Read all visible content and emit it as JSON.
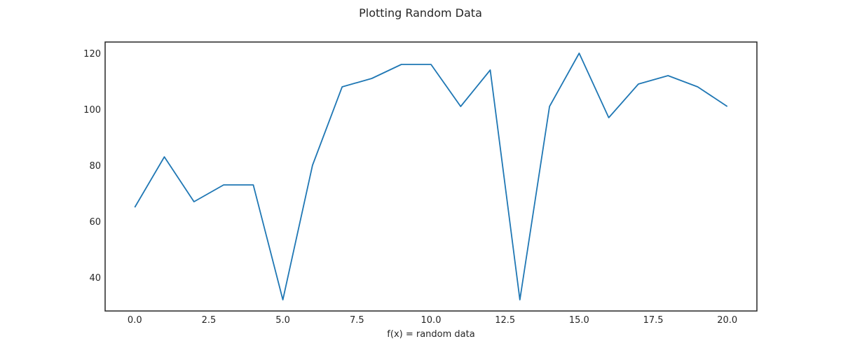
{
  "chart_data": {
    "type": "line",
    "title": "Plotting Random Data",
    "xlabel": "f(x) = random data",
    "ylabel": "",
    "xlim": [
      -1,
      21
    ],
    "ylim": [
      28,
      124
    ],
    "x_ticks": [
      0,
      2.5,
      5,
      7.5,
      10,
      12.5,
      15,
      17.5,
      20
    ],
    "x_tick_labels": [
      "0.0",
      "2.5",
      "5.0",
      "7.5",
      "10.0",
      "12.5",
      "15.0",
      "17.5",
      "20.0"
    ],
    "y_ticks": [
      40,
      60,
      80,
      100,
      120
    ],
    "y_tick_labels": [
      "40",
      "60",
      "80",
      "100",
      "120"
    ],
    "grid": false,
    "series": [
      {
        "color": "#1f77b4",
        "x": [
          0,
          1,
          2,
          3,
          4,
          5,
          6,
          7,
          8,
          9,
          10,
          11,
          12,
          13,
          14,
          15,
          16,
          17,
          18,
          19,
          20
        ],
        "values": [
          65,
          83,
          67,
          73,
          73,
          32,
          80,
          108,
          111,
          116,
          116,
          101,
          114,
          32,
          101,
          120,
          97,
          109,
          112,
          108,
          101
        ]
      }
    ]
  }
}
